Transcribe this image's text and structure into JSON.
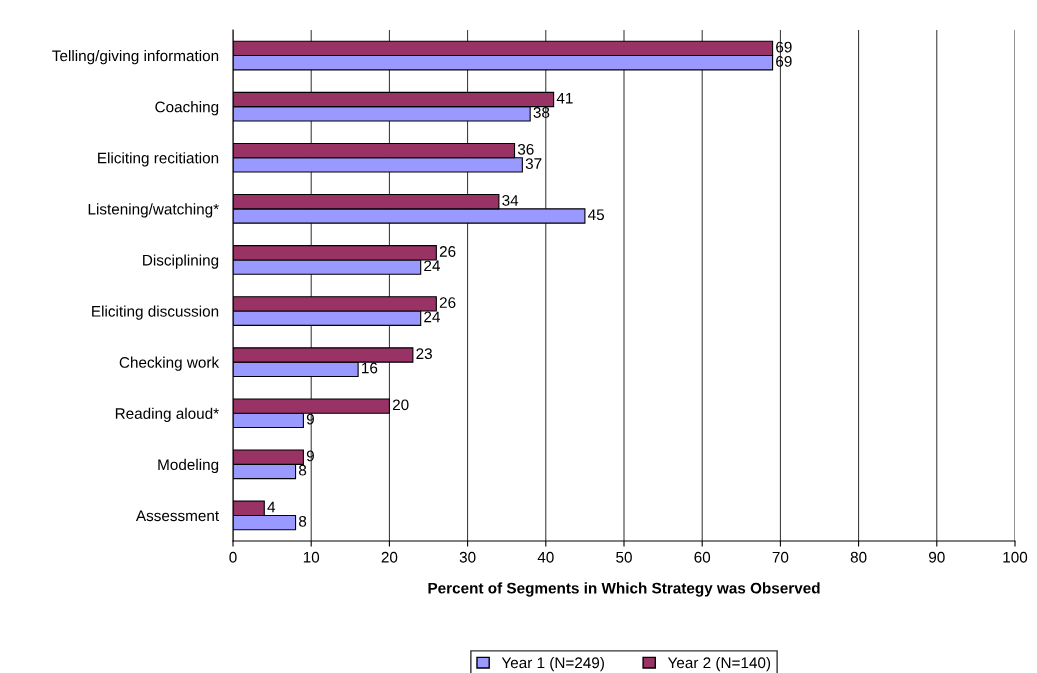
{
  "chart_data": {
    "type": "bar",
    "orientation": "horizontal",
    "xlabel": "Percent of Segments in Which Strategy was Observed",
    "categories": [
      "Telling/giving information",
      "Coaching",
      "Eliciting recitiation",
      "Listening/watching*",
      "Disciplining",
      "Eliciting discussion",
      "Checking work",
      "Reading aloud*",
      "Modeling",
      "Assessment"
    ],
    "series": [
      {
        "name": "Year 1 (N=249)",
        "color": "#9999ff",
        "values": [
          69,
          38,
          37,
          45,
          24,
          24,
          16,
          9,
          8,
          8
        ]
      },
      {
        "name": "Year 2 (N=140)",
        "color": "#993366",
        "values": [
          69,
          41,
          36,
          34,
          26,
          26,
          23,
          20,
          9,
          4
        ]
      }
    ],
    "xlim": [
      0,
      100
    ],
    "xticks": [
      0,
      10,
      20,
      30,
      40,
      50,
      60,
      70,
      80,
      90,
      100
    ],
    "grid": "x",
    "legend": "bottom",
    "data_labels": true
  }
}
